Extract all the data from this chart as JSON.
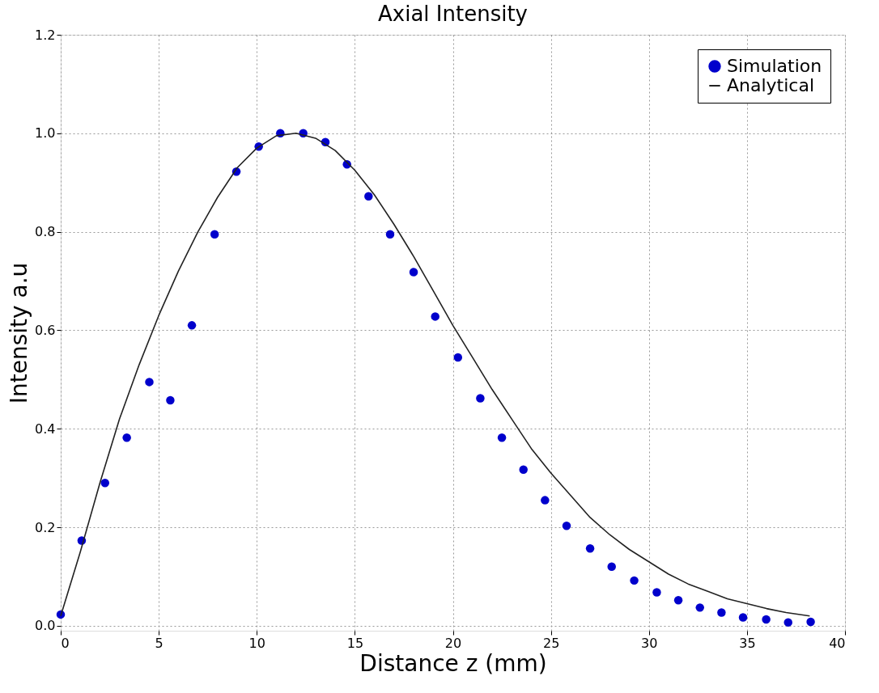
{
  "chart_data": {
    "type": "scatter",
    "title": "Axial Intensity",
    "xlabel": "Distance z   (mm)",
    "ylabel": "Intensity a.u",
    "xlim": [
      0,
      40
    ],
    "xticks": [
      0,
      5,
      10,
      15,
      20,
      25,
      30,
      35,
      40
    ],
    "ylim": [
      -0.01,
      1.2
    ],
    "yticks": [
      {
        "value": 0,
        "label": "0.0"
      },
      {
        "value": 0.2,
        "label": "0.2"
      },
      {
        "value": 0.4,
        "label": "0.4"
      },
      {
        "value": 0.6,
        "label": "0.6"
      },
      {
        "value": 0.8,
        "label": "0.8"
      },
      {
        "value": 1.0,
        "label": "1.0"
      },
      {
        "value": 1.2,
        "label": "1.2"
      }
    ],
    "grid": true,
    "legend": "top right",
    "series": [
      {
        "name": "Simulation",
        "marker": "circle",
        "color": "#0000cc",
        "x": [
          0,
          1.07,
          2.26,
          3.37,
          4.52,
          5.59,
          6.69,
          7.85,
          8.96,
          10.1,
          11.2,
          12.37,
          13.5,
          14.6,
          15.7,
          16.8,
          18.0,
          19.1,
          20.26,
          21.4,
          22.5,
          23.6,
          24.7,
          25.8,
          27.0,
          28.1,
          29.25,
          30.4,
          31.5,
          32.6,
          33.7,
          34.8,
          35.98,
          37.1,
          38.25
        ],
        "values": [
          0.023,
          0.173,
          0.29,
          0.382,
          0.495,
          0.458,
          0.61,
          0.795,
          0.922,
          0.973,
          1.0,
          1.0,
          0.982,
          0.937,
          0.872,
          0.795,
          0.718,
          0.628,
          0.545,
          0.462,
          0.382,
          0.317,
          0.255,
          0.203,
          0.157,
          0.12,
          0.092,
          0.068,
          0.052,
          0.037,
          0.027,
          0.017,
          0.013,
          0.007,
          0.008
        ]
      },
      {
        "name": "Analytical",
        "type": "line",
        "line_style": "solid",
        "color": "#222222",
        "x": [
          0,
          1,
          2,
          3,
          4,
          5,
          6,
          7,
          8,
          9,
          10,
          11,
          12,
          13,
          14,
          15,
          16,
          17,
          18,
          19,
          20,
          21,
          22,
          23,
          24,
          25,
          26,
          27,
          28,
          29,
          30,
          31,
          32,
          33,
          34,
          35,
          36,
          37,
          38.2
        ],
        "values": [
          0.02,
          0.15,
          0.29,
          0.42,
          0.53,
          0.63,
          0.72,
          0.8,
          0.87,
          0.93,
          0.97,
          0.995,
          1.0,
          0.99,
          0.965,
          0.925,
          0.875,
          0.815,
          0.75,
          0.68,
          0.61,
          0.545,
          0.48,
          0.42,
          0.36,
          0.31,
          0.265,
          0.22,
          0.185,
          0.155,
          0.13,
          0.105,
          0.085,
          0.07,
          0.055,
          0.045,
          0.035,
          0.027,
          0.02
        ]
      }
    ]
  }
}
